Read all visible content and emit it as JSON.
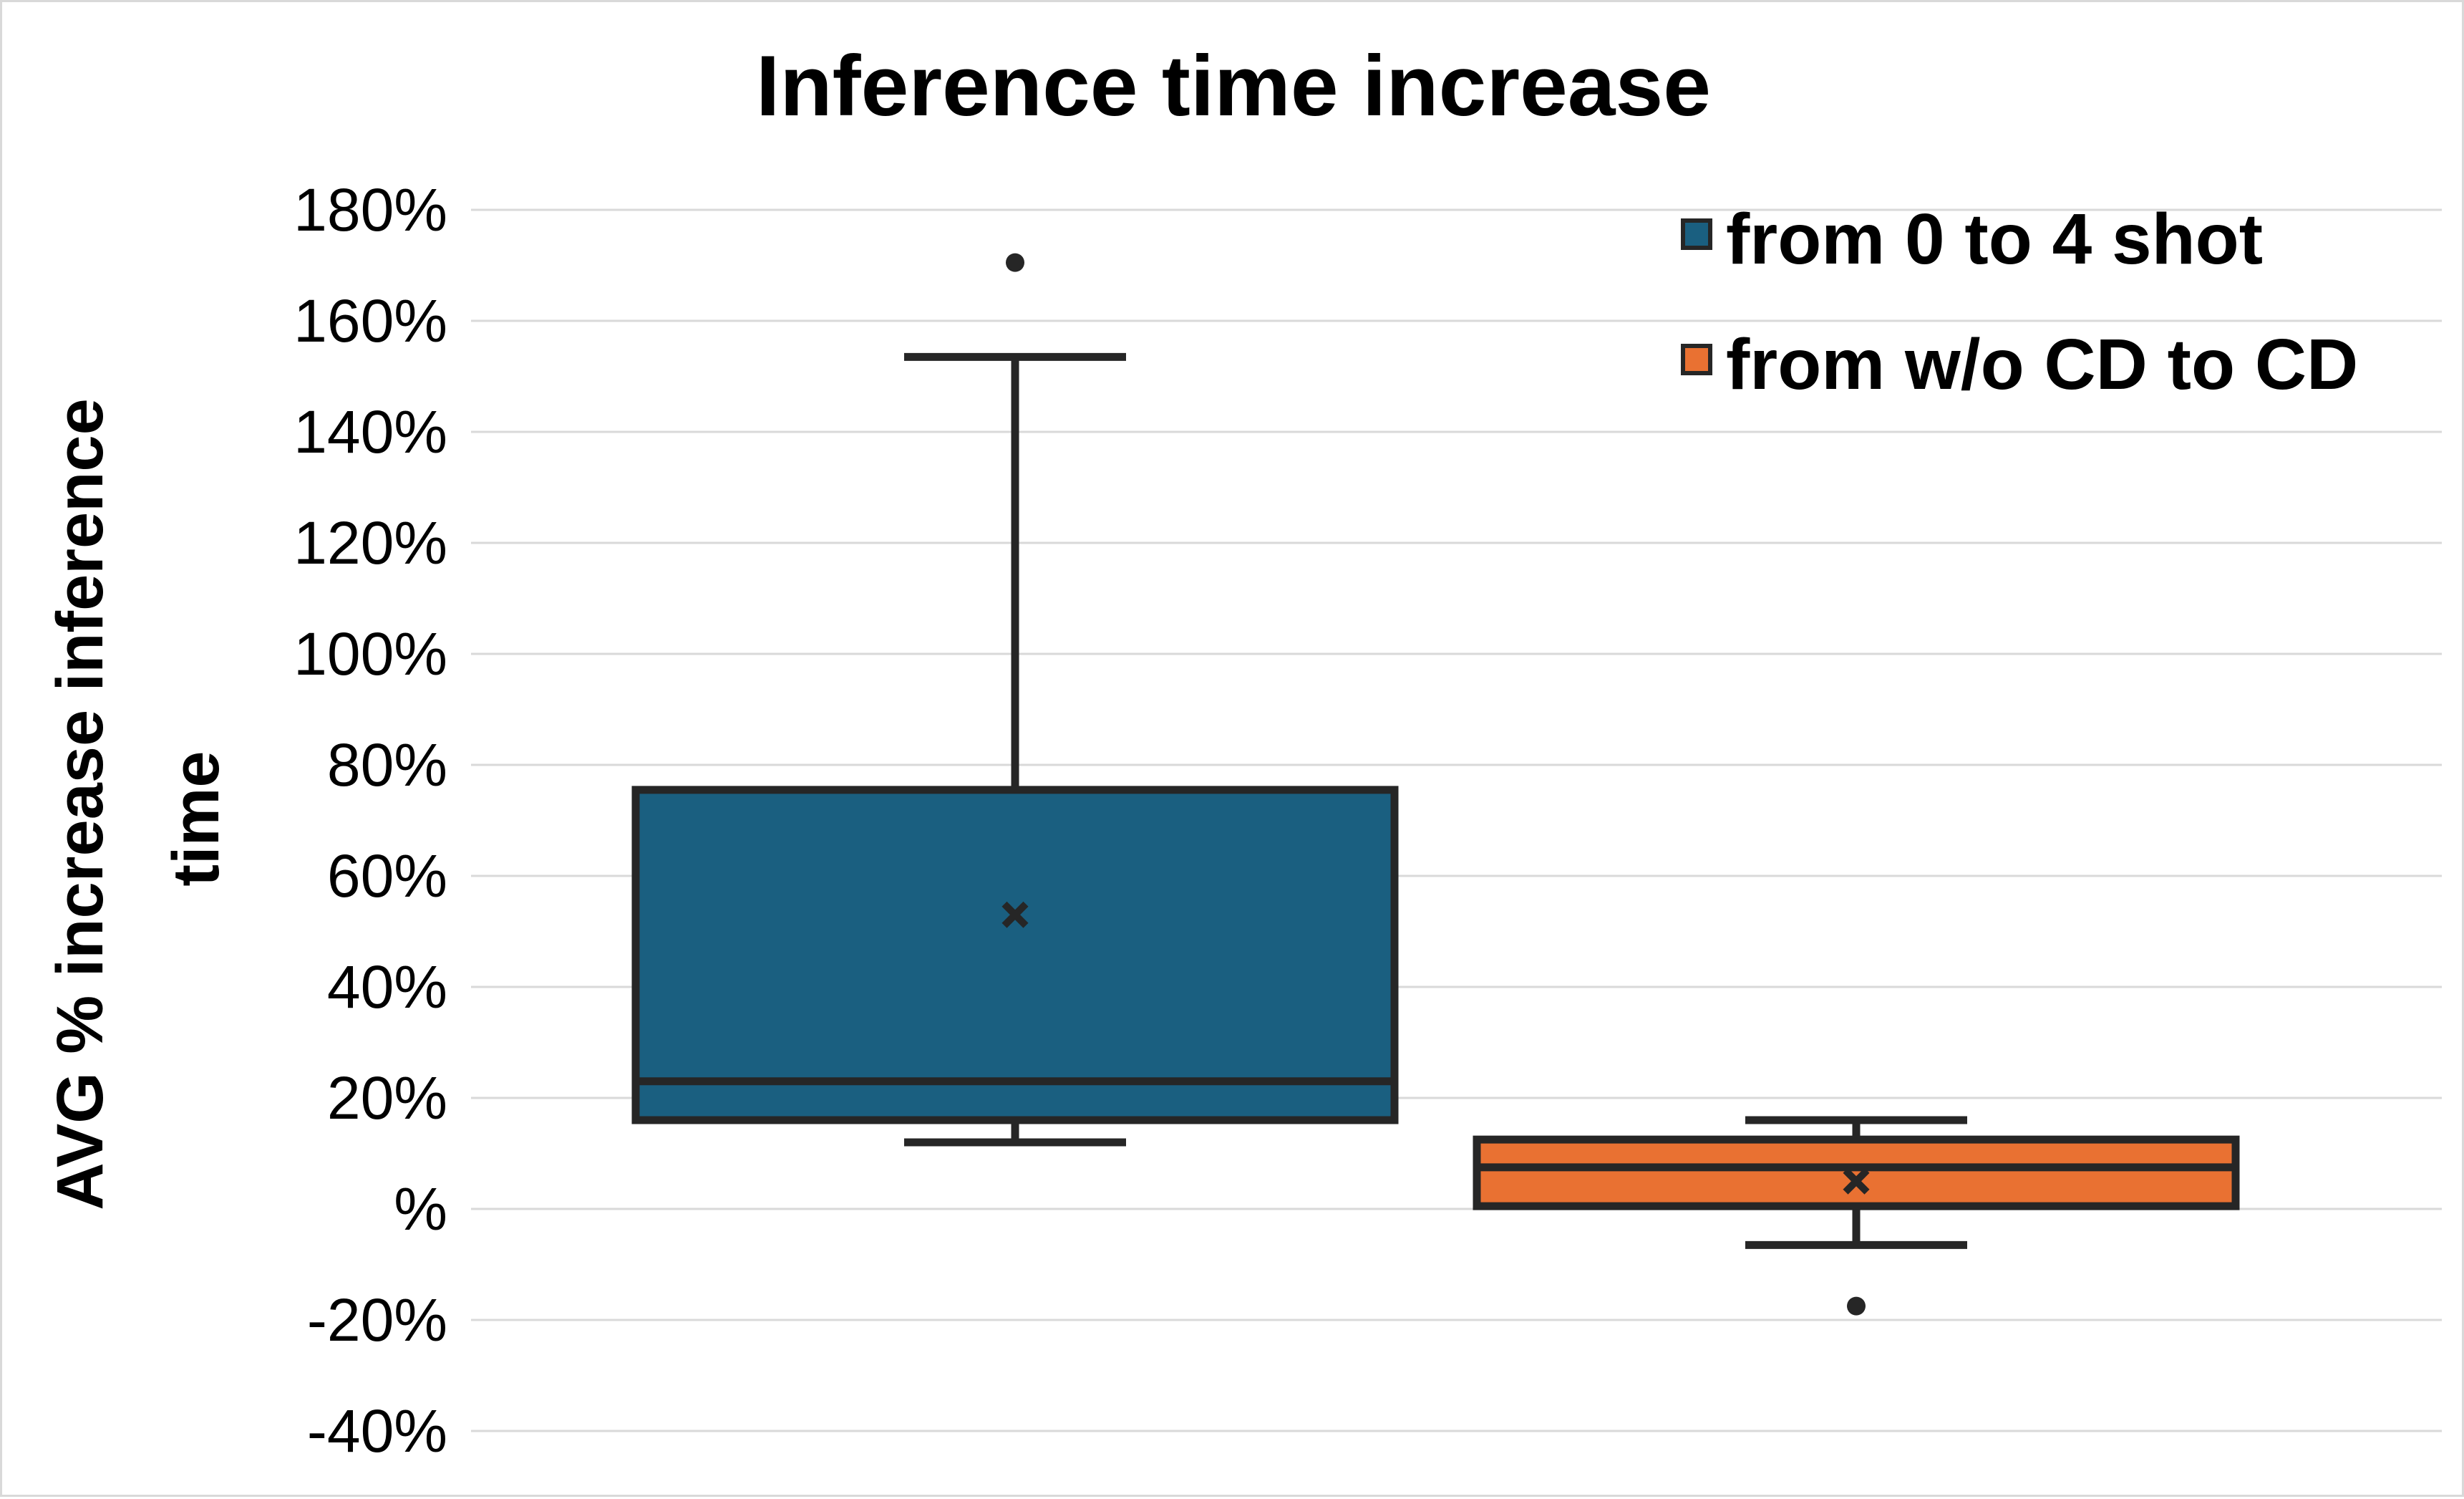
{
  "chart_data": {
    "type": "box",
    "title": "Inference time increase",
    "ylabel_lines": [
      "AVG % increase inference",
      "time"
    ],
    "xlabel": "",
    "ylim": [
      -0.4,
      1.8
    ],
    "y_ticks": [
      {
        "value": 1.8,
        "label": "180%"
      },
      {
        "value": 1.6,
        "label": "160%"
      },
      {
        "value": 1.4,
        "label": "140%"
      },
      {
        "value": 1.2,
        "label": "120%"
      },
      {
        "value": 1.0,
        "label": "100%"
      },
      {
        "value": 0.8,
        "label": "80%"
      },
      {
        "value": 0.6,
        "label": "60%"
      },
      {
        "value": 0.4,
        "label": "40%"
      },
      {
        "value": 0.2,
        "label": "20%"
      },
      {
        "value": 0.0,
        "label": "%"
      },
      {
        "value": -0.2,
        "label": "-20%"
      },
      {
        "value": -0.4,
        "label": "-40%"
      }
    ],
    "grid": true,
    "legend_position": "top-right",
    "series": [
      {
        "name": "from 0 to 4 shot",
        "color": "#1a5f80",
        "whisker_low": 0.12,
        "q1": 0.16,
        "median": 0.23,
        "q3": 0.755,
        "whisker_high": 1.535,
        "mean": 0.53,
        "outliers": [
          1.705
        ]
      },
      {
        "name": "from w/o CD to CD",
        "color": "#e97132",
        "whisker_low": -0.065,
        "q1": 0.005,
        "median": 0.075,
        "q3": 0.125,
        "whisker_high": 0.16,
        "mean": 0.05,
        "outliers": [
          -0.175
        ]
      }
    ]
  }
}
